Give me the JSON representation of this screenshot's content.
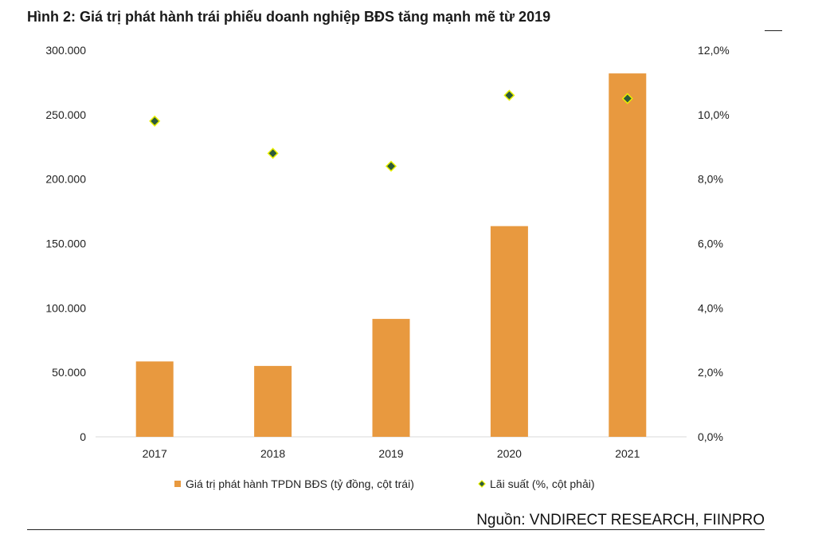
{
  "figure": {
    "title": "Hình 2: Giá trị phát hành trái phiếu doanh nghiệp BĐS tăng mạnh mẽ từ 2019",
    "source": "Nguồn: VNDIRECT RESEARCH, FIINPRO"
  },
  "chart_data": {
    "type": "bar",
    "title": "Hình 2: Giá trị phát hành trái phiếu doanh nghiệp BĐS tăng mạnh mẽ từ 2019",
    "categories": [
      "2017",
      "2018",
      "2019",
      "2020",
      "2021"
    ],
    "series": [
      {
        "name": "Giá trị phát hành TPDN BĐS (tỷ đồng, cột trái)",
        "type": "bar",
        "axis": "left",
        "color": "#E8993F",
        "values": [
          58500,
          55000,
          91500,
          163500,
          282000
        ]
      },
      {
        "name": "Lãi suất (%, cột phải)",
        "type": "scatter",
        "axis": "right",
        "color": "#2D5A3C",
        "edge_color": "#E8F000",
        "values": [
          9.8,
          8.8,
          8.4,
          10.6,
          10.5
        ]
      }
    ],
    "y_left": {
      "range": [
        0,
        300000
      ],
      "ticks": [
        0,
        50000,
        100000,
        150000,
        200000,
        250000,
        300000
      ],
      "tick_labels": [
        "0",
        "50.000",
        "100.000",
        "150.000",
        "200.000",
        "250.000",
        "300.000"
      ]
    },
    "y_right": {
      "range": [
        0,
        12
      ],
      "ticks": [
        0,
        2,
        4,
        6,
        8,
        10,
        12
      ],
      "tick_labels": [
        "0,0%",
        "2,0%",
        "4,0%",
        "6,0%",
        "8,0%",
        "10,0%",
        "12,0%"
      ]
    },
    "grid": false,
    "legend": "bottom",
    "axis_color": "#D9D9D9"
  }
}
